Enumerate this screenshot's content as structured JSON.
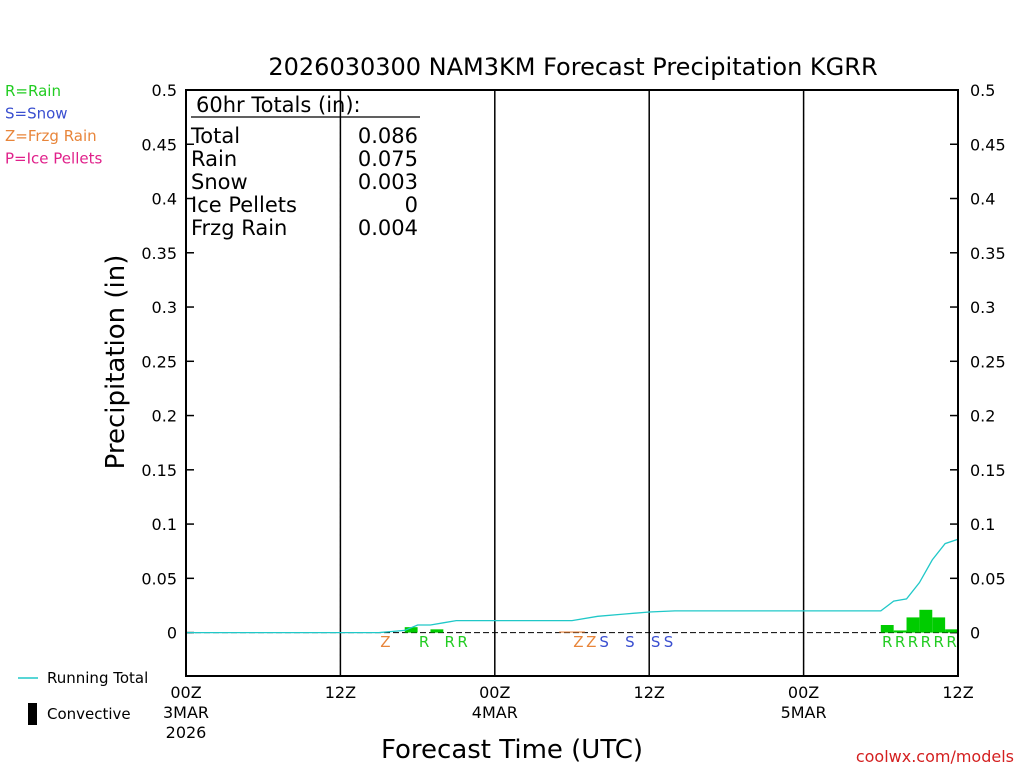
{
  "chart_data": {
    "type": "bar",
    "title": "2026030300 NAM3KM Forecast Precipitation KGRR",
    "xlabel": "Forecast Time (UTC)",
    "ylabel": "Precipitation (in)",
    "ylim": [
      -0.04,
      0.5
    ],
    "xlim_hours": [
      0,
      60
    ],
    "yticks": [
      "0",
      "0.05",
      "0.1",
      "0.15",
      "0.2",
      "0.25",
      "0.3",
      "0.35",
      "0.4",
      "0.45",
      "0.5"
    ],
    "xticks": [
      {
        "hour": 0,
        "label": "00Z",
        "date": "3MAR",
        "year": "2026"
      },
      {
        "hour": 12,
        "label": "12Z",
        "date": "",
        "year": ""
      },
      {
        "hour": 24,
        "label": "00Z",
        "date": "4MAR",
        "year": ""
      },
      {
        "hour": 36,
        "label": "12Z",
        "date": "",
        "year": ""
      },
      {
        "hour": 48,
        "label": "00Z",
        "date": "5MAR",
        "year": ""
      },
      {
        "hour": 60,
        "label": "12Z",
        "date": "",
        "year": ""
      }
    ],
    "legend": [
      {
        "code": "R",
        "label": "R=Rain",
        "color": "#22cc22"
      },
      {
        "code": "S",
        "label": "S=Snow",
        "color": "#3a4fd0"
      },
      {
        "code": "Z",
        "label": "Z=Frzg Rain",
        "color": "#e8853a"
      },
      {
        "code": "P",
        "label": "P=Ice Pellets",
        "color": "#e0208a"
      }
    ],
    "bottom_legend": [
      {
        "label": "Running Total",
        "color": "#20c8c8",
        "style": "line"
      },
      {
        "label": "Convective",
        "color": "#000000",
        "style": "bar"
      }
    ],
    "totals": {
      "heading": "60hr Totals (in):",
      "rows": [
        {
          "label": "Total",
          "value": "0.086"
        },
        {
          "label": "Rain",
          "value": "0.075"
        },
        {
          "label": "Snow",
          "value": "0.003"
        },
        {
          "label": "Ice Pellets",
          "value": "0"
        },
        {
          "label": "Frzg Rain",
          "value": "0.004"
        }
      ]
    },
    "hourly_bars": [
      {
        "hour": 18,
        "value": 0.005,
        "color": "#00cc00"
      },
      {
        "hour": 20,
        "value": 0.003,
        "color": "#00cc00"
      },
      {
        "hour": 30,
        "value": 0.001,
        "color": "#e8853a"
      },
      {
        "hour": 31,
        "value": 0.001,
        "color": "#e8853a"
      },
      {
        "hour": 55,
        "value": 0.007,
        "color": "#00cc00"
      },
      {
        "hour": 56,
        "value": 0.002,
        "color": "#00cc00"
      },
      {
        "hour": 57,
        "value": 0.014,
        "color": "#00cc00"
      },
      {
        "hour": 58,
        "value": 0.021,
        "color": "#00cc00"
      },
      {
        "hour": 59,
        "value": 0.014,
        "color": "#00cc00"
      },
      {
        "hour": 60,
        "value": 0.003,
        "color": "#00cc00"
      }
    ],
    "running_total": {
      "x": [
        0,
        15,
        16,
        17,
        18,
        19,
        20,
        21,
        22,
        24,
        30,
        32,
        34,
        36,
        38,
        40,
        48,
        54,
        55,
        56,
        57,
        58,
        59,
        60
      ],
      "y": [
        0,
        0,
        0.001,
        0.002,
        0.007,
        0.007,
        0.009,
        0.011,
        0.011,
        0.011,
        0.011,
        0.015,
        0.017,
        0.019,
        0.02,
        0.02,
        0.02,
        0.02,
        0.029,
        0.031,
        0.046,
        0.067,
        0.082,
        0.086
      ]
    },
    "ptype_markers": [
      {
        "hour": 16,
        "code": "Z"
      },
      {
        "hour": 19,
        "code": "R"
      },
      {
        "hour": 21,
        "code": "R"
      },
      {
        "hour": 22,
        "code": "R"
      },
      {
        "hour": 31,
        "code": "Z"
      },
      {
        "hour": 32,
        "code": "Z"
      },
      {
        "hour": 33,
        "code": "S"
      },
      {
        "hour": 35,
        "code": "S"
      },
      {
        "hour": 37,
        "code": "S"
      },
      {
        "hour": 38,
        "code": "S"
      },
      {
        "hour": 55,
        "code": "R"
      },
      {
        "hour": 56,
        "code": "R"
      },
      {
        "hour": 57,
        "code": "R"
      },
      {
        "hour": 58,
        "code": "R"
      },
      {
        "hour": 59,
        "code": "R"
      },
      {
        "hour": 60,
        "code": "R"
      }
    ],
    "credit": "coolwx.com/models"
  }
}
